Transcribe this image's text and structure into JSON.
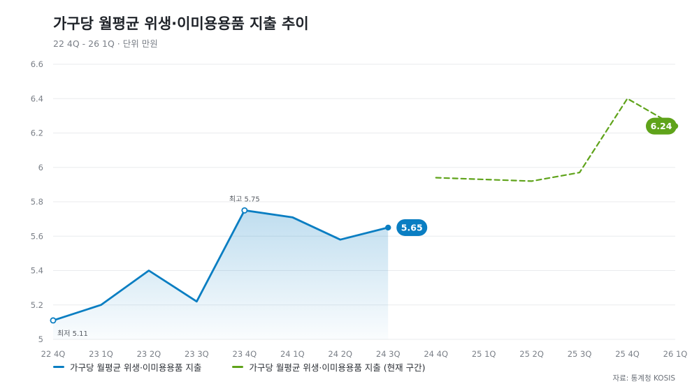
{
  "header": {
    "title": "가구당 월평균 위생·이미용용품 지출 추이",
    "subtitle": "22 4Q - 26 1Q · 단위 만원"
  },
  "source": "자료: 통계청 KOSIS",
  "colors": {
    "blue": "#0a7ec2",
    "green": "#5fa31a",
    "grid": "#e9ebee",
    "axis": "#7a7f87"
  },
  "chart_data": {
    "type": "line",
    "categories": [
      "22 4Q",
      "23 1Q",
      "23 2Q",
      "23 3Q",
      "23 4Q",
      "24 1Q",
      "24 2Q",
      "24 3Q",
      "24 4Q",
      "25 1Q",
      "25 2Q",
      "25 3Q",
      "25 4Q",
      "26 1Q"
    ],
    "ylim": [
      5,
      6.6
    ],
    "yticks": [
      "5",
      "5.2",
      "5.4",
      "5.6",
      "5.8",
      "6",
      "6.2",
      "6.4",
      "6.6"
    ],
    "grid": true,
    "legend_position": "bottom-left",
    "series": [
      {
        "name": "가구당 월평균 위생·이미용용품 지출",
        "color": "#0a7ec2",
        "style": "solid",
        "area": true,
        "values": [
          5.11,
          5.2,
          5.4,
          5.22,
          5.75,
          5.71,
          5.58,
          5.65,
          null,
          null,
          null,
          null,
          null,
          null
        ]
      },
      {
        "name": "가구당 월평균 위생·이미용용품 지출 (현재 구간)",
        "color": "#5fa31a",
        "style": "dashed",
        "area": false,
        "values": [
          null,
          null,
          null,
          null,
          null,
          null,
          null,
          null,
          5.94,
          5.93,
          5.92,
          5.97,
          6.4,
          6.24
        ]
      }
    ],
    "annotations": [
      {
        "text": "최고 5.75",
        "category": "23 4Q",
        "value": 5.75,
        "placement": "above"
      },
      {
        "text": "최저 5.11",
        "category": "22 4Q",
        "value": 5.11,
        "placement": "below"
      }
    ],
    "end_labels": [
      {
        "text": "5.65",
        "category": "24 3Q",
        "value": 5.65,
        "color": "#0a7ec2"
      },
      {
        "text": "6.24",
        "category": "26 1Q",
        "value": 6.24,
        "color": "#5fa31a"
      }
    ]
  }
}
